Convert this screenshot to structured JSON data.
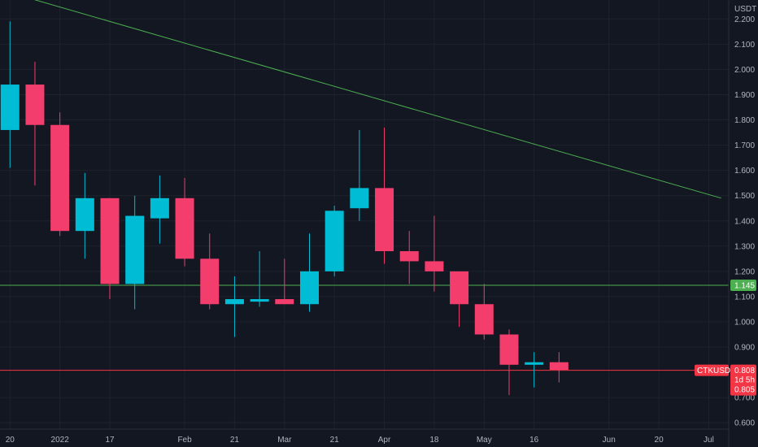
{
  "chart_data": {
    "type": "candlestick",
    "symbol": "CTKUSDT",
    "currency": "USDT",
    "timeframe_remaining": "1d 5h",
    "price_axis_labels": [
      "2.200",
      "2.100",
      "2.000",
      "1.900",
      "1.800",
      "1.700",
      "1.600",
      "1.500",
      "1.400",
      "1.300",
      "1.200",
      "1.100",
      "1.000",
      "0.900",
      "0.700",
      "0.600"
    ],
    "x_tick_labels": [
      {
        "label": "20",
        "index": 0
      },
      {
        "label": "2022",
        "index": 2
      },
      {
        "label": "17",
        "index": 4
      },
      {
        "label": "Feb",
        "index": 7
      },
      {
        "label": "21",
        "index": 9
      },
      {
        "label": "Mar",
        "index": 11
      },
      {
        "label": "21",
        "index": 13
      },
      {
        "label": "Apr",
        "index": 15
      },
      {
        "label": "18",
        "index": 17
      },
      {
        "label": "May",
        "index": 19
      },
      {
        "label": "16",
        "index": 21
      },
      {
        "label": "Jun",
        "index": 24
      },
      {
        "label": "20",
        "index": 26
      },
      {
        "label": "Jul",
        "index": 28
      }
    ],
    "ylim": [
      0.575,
      2.275
    ],
    "x_range": [
      -0.4,
      28.8
    ],
    "candles": [
      {
        "o": 1.76,
        "h": 2.19,
        "l": 1.61,
        "c": 1.94
      },
      {
        "o": 1.94,
        "h": 2.03,
        "l": 1.54,
        "c": 1.78
      },
      {
        "o": 1.78,
        "h": 1.83,
        "l": 1.34,
        "c": 1.36
      },
      {
        "o": 1.36,
        "h": 1.59,
        "l": 1.25,
        "c": 1.49
      },
      {
        "o": 1.49,
        "h": 1.49,
        "l": 1.09,
        "c": 1.15
      },
      {
        "o": 1.15,
        "h": 1.5,
        "l": 1.05,
        "c": 1.42
      },
      {
        "o": 1.41,
        "h": 1.58,
        "l": 1.31,
        "c": 1.49
      },
      {
        "o": 1.49,
        "h": 1.57,
        "l": 1.22,
        "c": 1.25
      },
      {
        "o": 1.25,
        "h": 1.35,
        "l": 1.05,
        "c": 1.07
      },
      {
        "o": 1.07,
        "h": 1.18,
        "l": 0.94,
        "c": 1.09
      },
      {
        "o": 1.08,
        "h": 1.28,
        "l": 1.06,
        "c": 1.09
      },
      {
        "o": 1.09,
        "h": 1.25,
        "l": 1.07,
        "c": 1.07
      },
      {
        "o": 1.07,
        "h": 1.35,
        "l": 1.04,
        "c": 1.2
      },
      {
        "o": 1.2,
        "h": 1.46,
        "l": 1.18,
        "c": 1.44
      },
      {
        "o": 1.45,
        "h": 1.76,
        "l": 1.4,
        "c": 1.53
      },
      {
        "o": 1.53,
        "h": 1.77,
        "l": 1.23,
        "c": 1.28
      },
      {
        "o": 1.28,
        "h": 1.36,
        "l": 1.15,
        "c": 1.24
      },
      {
        "o": 1.24,
        "h": 1.42,
        "l": 1.12,
        "c": 1.2
      },
      {
        "o": 1.2,
        "h": 1.2,
        "l": 0.98,
        "c": 1.07
      },
      {
        "o": 1.07,
        "h": 1.15,
        "l": 0.93,
        "c": 0.95
      },
      {
        "o": 0.95,
        "h": 0.97,
        "l": 0.71,
        "c": 0.83
      },
      {
        "o": 0.83,
        "h": 0.88,
        "l": 0.74,
        "c": 0.84
      },
      {
        "o": 0.84,
        "h": 0.88,
        "l": 0.76,
        "c": 0.81
      }
    ],
    "trendline": {
      "x1": 0.5,
      "y1": 2.29,
      "x2": 28.5,
      "y2": 1.49
    },
    "horizontal_levels": [
      {
        "name": "support",
        "value": 1.145,
        "label": "1.145",
        "color": "#4caf50"
      },
      {
        "name": "current",
        "value": 0.808,
        "label": "0.808",
        "color": "#f23645"
      }
    ],
    "current_price_label": "0.808",
    "close_label": "0.805",
    "grid": true,
    "colors": {
      "up": "#00bcd4",
      "down": "#f23d6d",
      "trendline": "#4caf50",
      "background": "#131722"
    }
  }
}
